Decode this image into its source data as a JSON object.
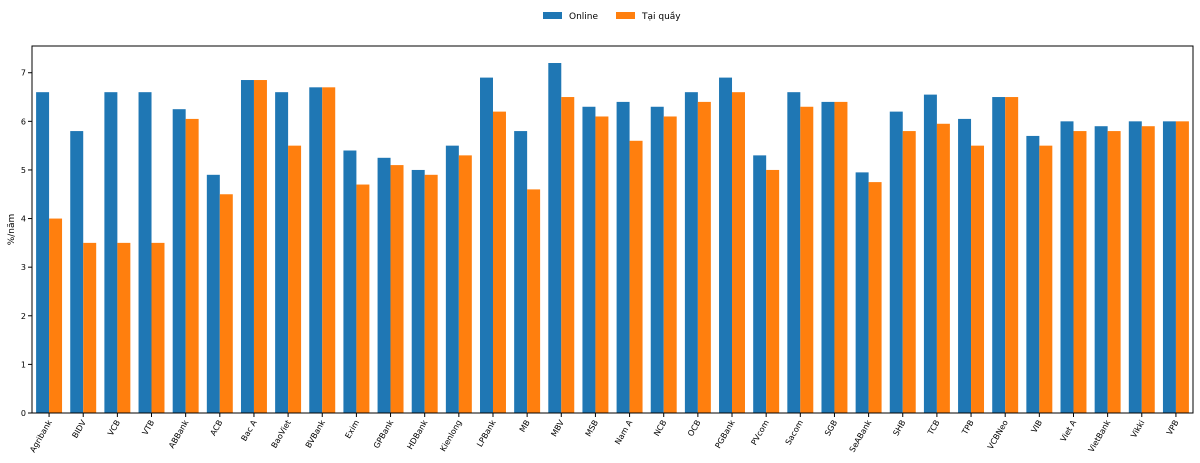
{
  "chart_data": {
    "type": "bar",
    "ylabel": "%/năm",
    "xlabel": "",
    "ylim": [
      0,
      7.55
    ],
    "yticks": [
      0,
      1,
      2,
      3,
      4,
      5,
      6,
      7
    ],
    "grid": false,
    "legend_position": "top-center",
    "categories": [
      "Agribank",
      "BIDV",
      "VCB",
      "VTB",
      "ABBank",
      "ACB",
      "Bac A",
      "BaoViet",
      "BVBank",
      "Exim",
      "GPBank",
      "HDBank",
      "Kienlong",
      "LPBank",
      "MB",
      "MBV",
      "MSB",
      "Nam A",
      "NCB",
      "OCB",
      "PGBank",
      "PVcom",
      "Sacom",
      "SGB",
      "SeABank",
      "SHB",
      "TCB",
      "TPB",
      "VCBNeo",
      "VIB",
      "Viet A",
      "VietBank",
      "Vikki",
      "VPB"
    ],
    "series": [
      {
        "name": "Online",
        "color": "#1f77b4",
        "values": [
          6.6,
          5.8,
          6.6,
          6.6,
          6.25,
          4.9,
          6.85,
          6.6,
          6.7,
          5.4,
          5.25,
          5.0,
          5.5,
          6.9,
          5.8,
          7.2,
          6.3,
          6.4,
          6.3,
          6.6,
          6.9,
          5.3,
          6.6,
          6.4,
          4.95,
          6.2,
          6.55,
          6.05,
          6.5,
          5.7,
          6.0,
          5.9,
          6.0,
          6.0
        ]
      },
      {
        "name": "Tại quầy",
        "color": "#ff7f0e",
        "values": [
          4.0,
          3.5,
          3.5,
          3.5,
          6.05,
          4.5,
          6.85,
          5.5,
          6.7,
          4.7,
          5.1,
          4.9,
          5.3,
          6.2,
          4.6,
          6.5,
          6.1,
          5.6,
          6.1,
          6.4,
          6.6,
          5.0,
          6.3,
          6.4,
          4.75,
          5.8,
          5.95,
          5.5,
          6.5,
          5.5,
          5.8,
          5.8,
          5.9,
          6.0
        ]
      }
    ]
  }
}
